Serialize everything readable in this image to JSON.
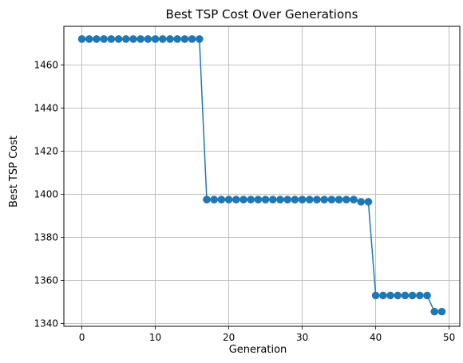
{
  "chart_data": {
    "type": "line",
    "title": "Best TSP Cost Over Generations",
    "xlabel": "Generation",
    "ylabel": "Best TSP Cost",
    "xlim": [
      -2.45,
      51.45
    ],
    "ylim": [
      1338.7,
      1477.9
    ],
    "xticks": [
      0,
      10,
      20,
      30,
      40,
      50
    ],
    "yticks": [
      1340,
      1360,
      1380,
      1400,
      1420,
      1440,
      1460
    ],
    "grid": true,
    "legend": "none",
    "color": "#1f77b4",
    "x": [
      0,
      1,
      2,
      3,
      4,
      5,
      6,
      7,
      8,
      9,
      10,
      11,
      12,
      13,
      14,
      15,
      16,
      17,
      18,
      19,
      20,
      21,
      22,
      23,
      24,
      25,
      26,
      27,
      28,
      29,
      30,
      31,
      32,
      33,
      34,
      35,
      36,
      37,
      38,
      39,
      40,
      41,
      42,
      43,
      44,
      45,
      46,
      47,
      48,
      49
    ],
    "y": [
      1472,
      1472,
      1472,
      1472,
      1472,
      1472,
      1472,
      1472,
      1472,
      1472,
      1472,
      1472,
      1472,
      1472,
      1472,
      1472,
      1472,
      1397.5,
      1397.5,
      1397.5,
      1397.5,
      1397.5,
      1397.5,
      1397.5,
      1397.5,
      1397.5,
      1397.5,
      1397.5,
      1397.5,
      1397.5,
      1397.5,
      1397.5,
      1397.5,
      1397.5,
      1397.5,
      1397.5,
      1397.5,
      1397.5,
      1396.5,
      1396.5,
      1353,
      1353,
      1353,
      1353,
      1353,
      1353,
      1353,
      1353,
      1345.5,
      1345.5
    ]
  }
}
